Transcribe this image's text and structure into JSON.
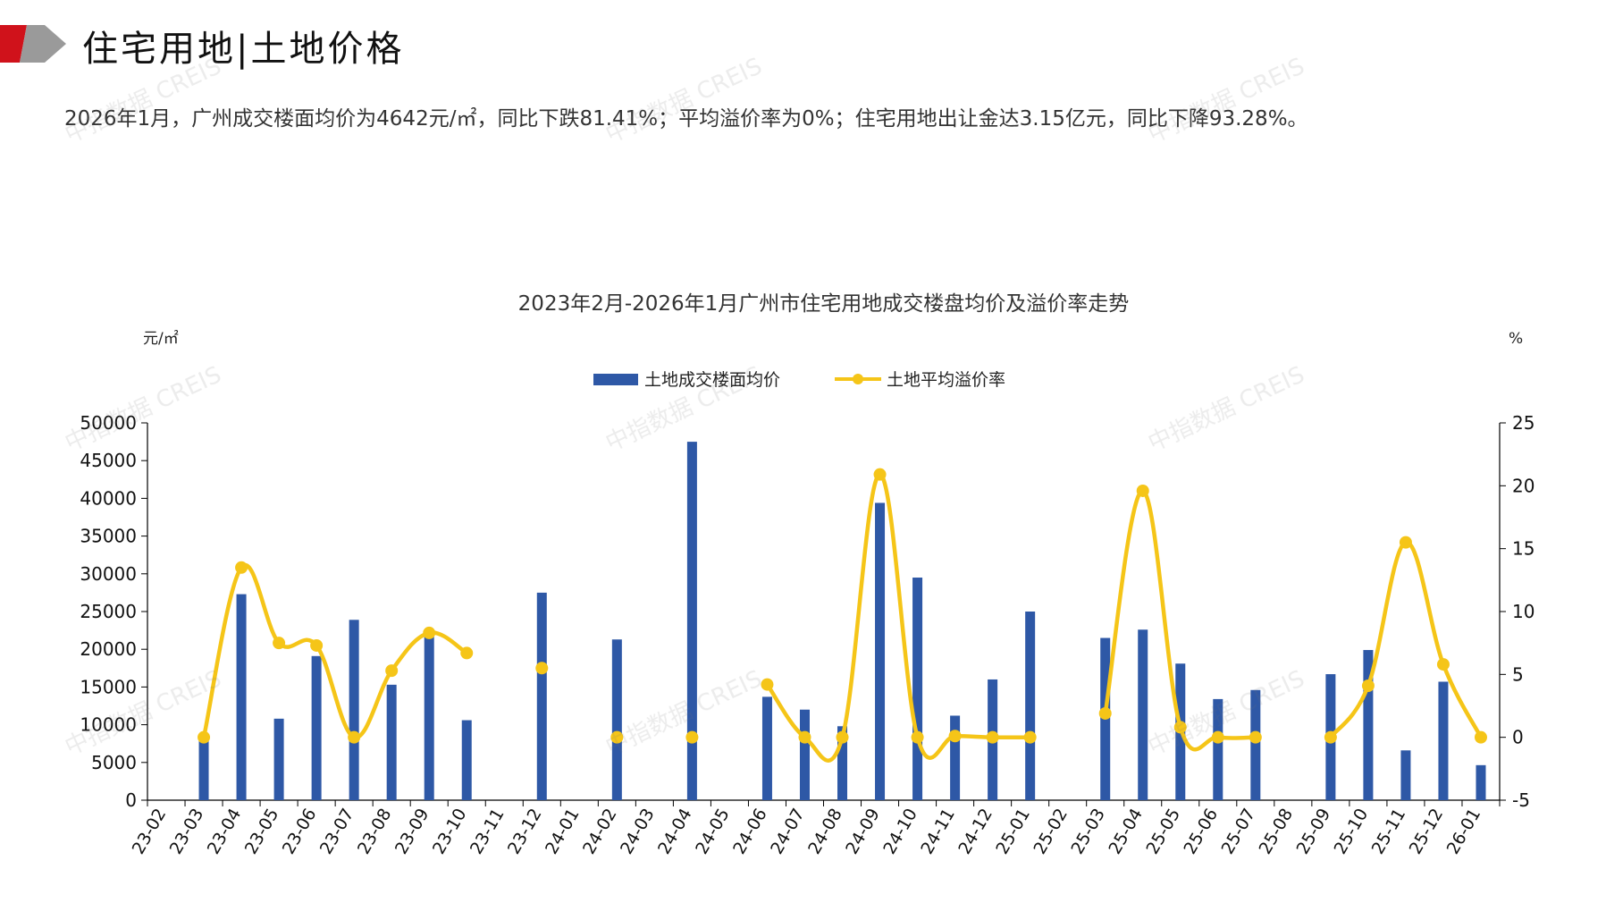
{
  "header": {
    "title": "住宅用地|土地价格",
    "brand_red": "#d0121b",
    "brand_gray": "#9a9a9a"
  },
  "summary": "2026年1月，广州成交楼面均价为4642元/㎡，同比下跌81.41%；平均溢价率为0%；住宅用地出让金达3.15亿元，同比下降93.28%。",
  "watermark": "中指数据 CREIS",
  "chart_data": {
    "type": "bar+line",
    "title": "2023年2月-2026年1月广州市住宅用地成交楼盘均价及溢价率走势",
    "y_left_unit": "元/㎡",
    "y_right_unit": "%",
    "y_left_range": [
      0,
      50000
    ],
    "y_left_ticks": [
      "0",
      "5000",
      "10000",
      "15000",
      "20000",
      "25000",
      "30000",
      "35000",
      "40000",
      "45000",
      "50000"
    ],
    "y_right_range": [
      -5,
      25
    ],
    "y_right_ticks": [
      "-5",
      "0",
      "5",
      "10",
      "15",
      "20",
      "25"
    ],
    "legend_position": "top-center",
    "grid": false,
    "categories": [
      "23-02",
      "23-03",
      "23-04",
      "23-05",
      "23-06",
      "23-07",
      "23-08",
      "23-09",
      "23-10",
      "23-11",
      "23-12",
      "24-01",
      "24-02",
      "24-03",
      "24-04",
      "24-05",
      "24-06",
      "24-07",
      "24-08",
      "24-09",
      "24-10",
      "24-11",
      "24-12",
      "25-01",
      "25-02",
      "25-03",
      "25-04",
      "25-05",
      "25-06",
      "25-07",
      "25-08",
      "25-09",
      "25-10",
      "25-11",
      "25-12",
      "26-01"
    ],
    "series": [
      {
        "name": "土地成交楼面均价",
        "kind": "bar",
        "axis": "left",
        "color": "#2e58a6",
        "values": [
          null,
          8600,
          27300,
          10800,
          19100,
          23900,
          15300,
          22200,
          10600,
          null,
          27500,
          null,
          21300,
          null,
          47500,
          null,
          13700,
          12000,
          9800,
          39400,
          29500,
          11200,
          16000,
          25000,
          null,
          21500,
          22600,
          18100,
          13400,
          14600,
          null,
          16700,
          19900,
          6600,
          15700,
          4642
        ]
      },
      {
        "name": "土地平均溢价率",
        "kind": "line",
        "axis": "right",
        "color": "#f5c518",
        "values": [
          null,
          0,
          13.5,
          7.5,
          7.3,
          0,
          5.3,
          8.3,
          6.7,
          null,
          5.5,
          null,
          0,
          null,
          0,
          null,
          4.2,
          0,
          0,
          20.9,
          0,
          0.1,
          0,
          0,
          null,
          1.9,
          19.6,
          0.8,
          0,
          0,
          null,
          0,
          4.1,
          15.5,
          5.8,
          0
        ]
      }
    ]
  }
}
